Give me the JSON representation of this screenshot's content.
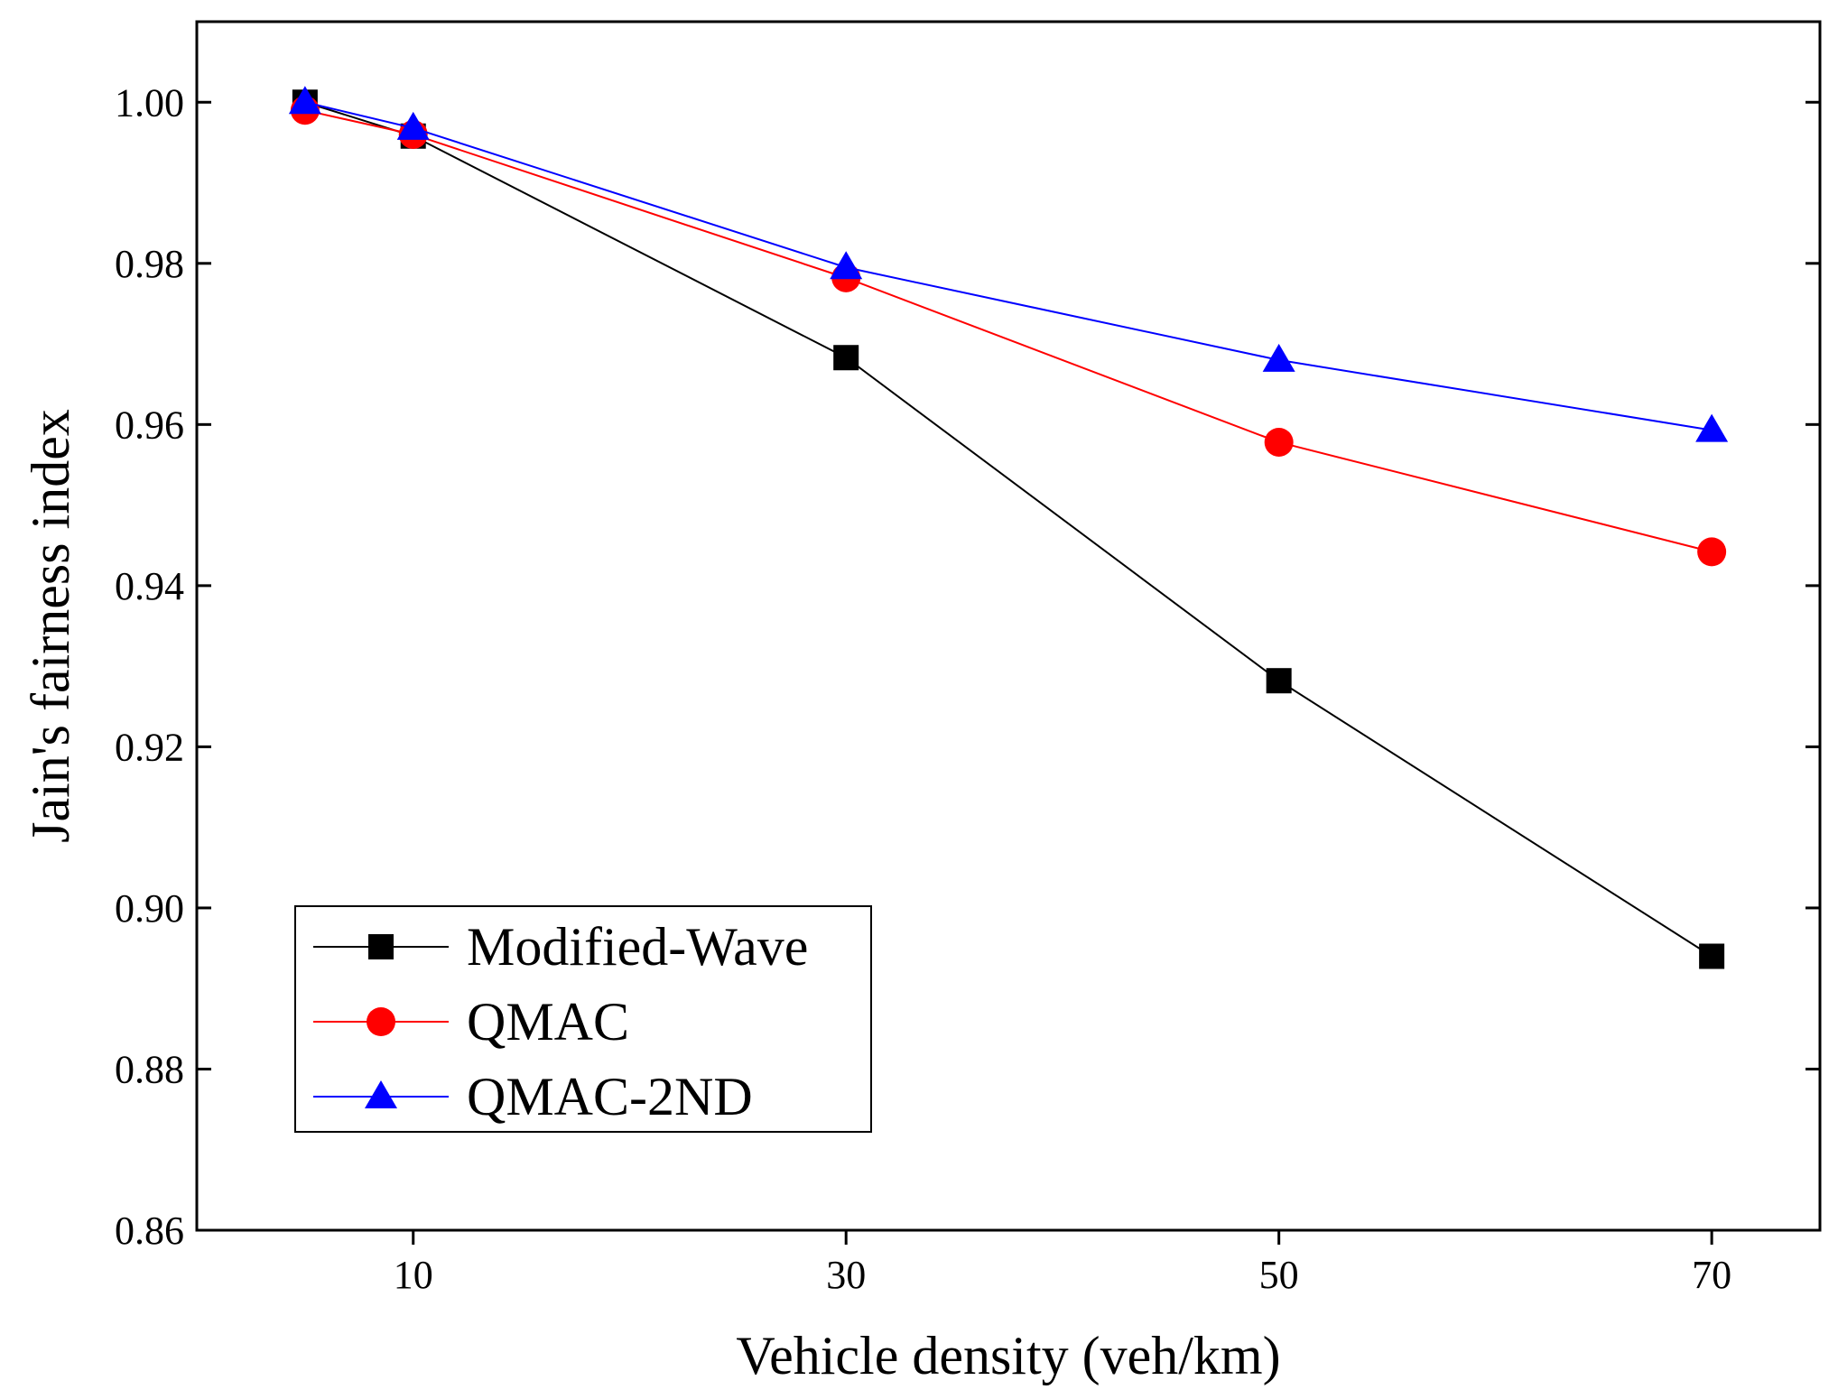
{
  "chart_data": {
    "type": "line",
    "title": "",
    "xlabel": "Vehicle density (veh/km)",
    "ylabel": "Jain's fairness index",
    "xlim": [
      0,
      75
    ],
    "ylim": [
      0.86,
      1.01
    ],
    "xticks": [
      10,
      30,
      50,
      70
    ],
    "xtick_labels": [
      "10",
      "30",
      "50",
      "70"
    ],
    "yticks": [
      0.86,
      0.88,
      0.9,
      0.92,
      0.94,
      0.96,
      0.98,
      1.0
    ],
    "ytick_labels": [
      "0.86",
      "0.88",
      "0.90",
      "0.92",
      "0.94",
      "0.96",
      "0.98",
      "1.00"
    ],
    "grid": false,
    "legend_position": "bottom-left",
    "x": [
      5,
      10,
      30,
      50,
      70
    ],
    "series": [
      {
        "name": "Modified-Wave",
        "color": "#000000",
        "marker": "square",
        "values": [
          1.0,
          0.9958,
          0.9683,
          0.9282,
          0.894
        ]
      },
      {
        "name": "QMAC",
        "color": "#ff0000",
        "marker": "circle",
        "values": [
          0.999,
          0.996,
          0.9782,
          0.9578,
          0.9442
        ]
      },
      {
        "name": "QMAC-2ND",
        "color": "#0000ff",
        "marker": "triangle",
        "values": [
          1.0,
          0.9968,
          0.9795,
          0.968,
          0.9593
        ]
      }
    ]
  }
}
